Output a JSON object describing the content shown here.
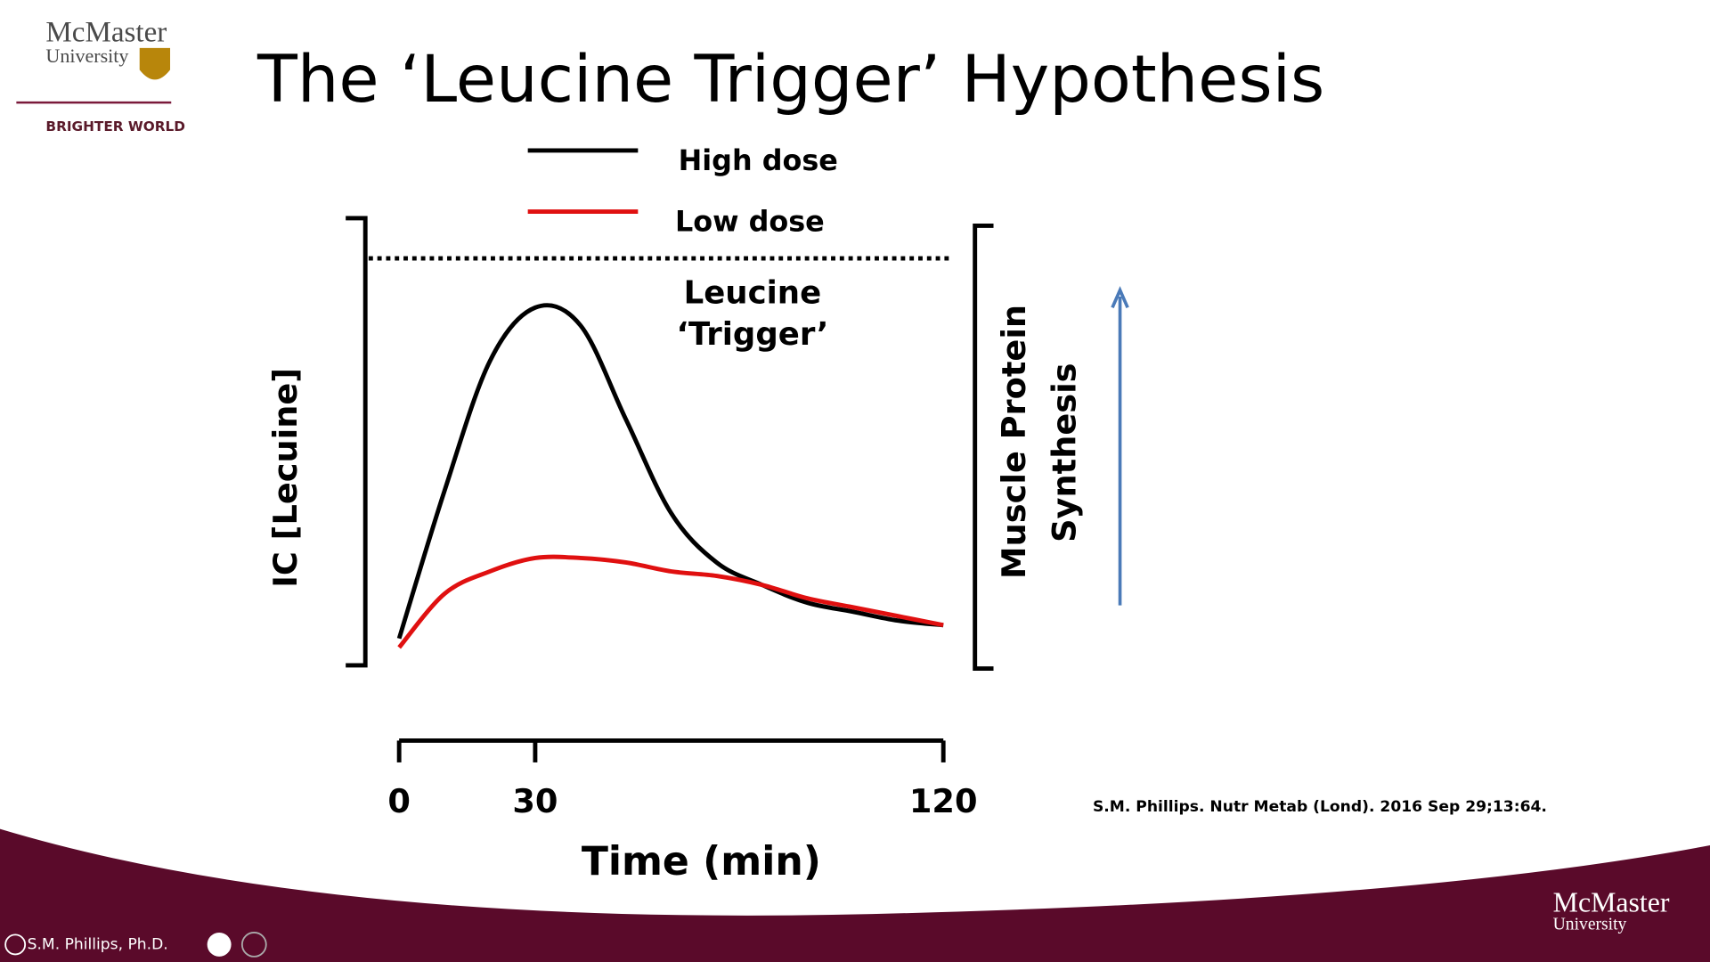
{
  "chart_data": {
    "type": "line",
    "title": "The ‘Leucine Trigger’ Hypothesis",
    "x": [
      0,
      10,
      20,
      30,
      40,
      50,
      60,
      70,
      80,
      90,
      100,
      110,
      120
    ],
    "series": [
      {
        "name": "High dose",
        "color": "#000000",
        "values": [
          6,
          39,
          68,
          80,
          76,
          55,
          34,
          23,
          18,
          14,
          12,
          10,
          9
        ]
      },
      {
        "name": "Low dose",
        "color": "#e01010",
        "values": [
          4,
          16,
          21,
          24,
          24,
          23,
          21,
          20,
          18,
          15,
          13,
          11,
          9
        ]
      }
    ],
    "xlim": [
      0,
      120
    ],
    "xticks": [
      0,
      30,
      120
    ],
    "ylim": [
      0,
      100
    ],
    "trigger": 91,
    "trigger_label": [
      "Leucine",
      "‘Trigger’"
    ],
    "xlabel": "Time (min)",
    "ylabel": "IC [Lecuine]",
    "y2_label": [
      "Muscle Protein",
      "Synthesis"
    ],
    "citation": "S.M. Phillips. Nutr Metab (Lond). 2016 Sep 29;13:64."
  },
  "branding": {
    "name": "McMaster",
    "unit": "University",
    "tagline": "BRIGHTER WORLD"
  },
  "presenter": "S.M. Phillips, Ph.D."
}
